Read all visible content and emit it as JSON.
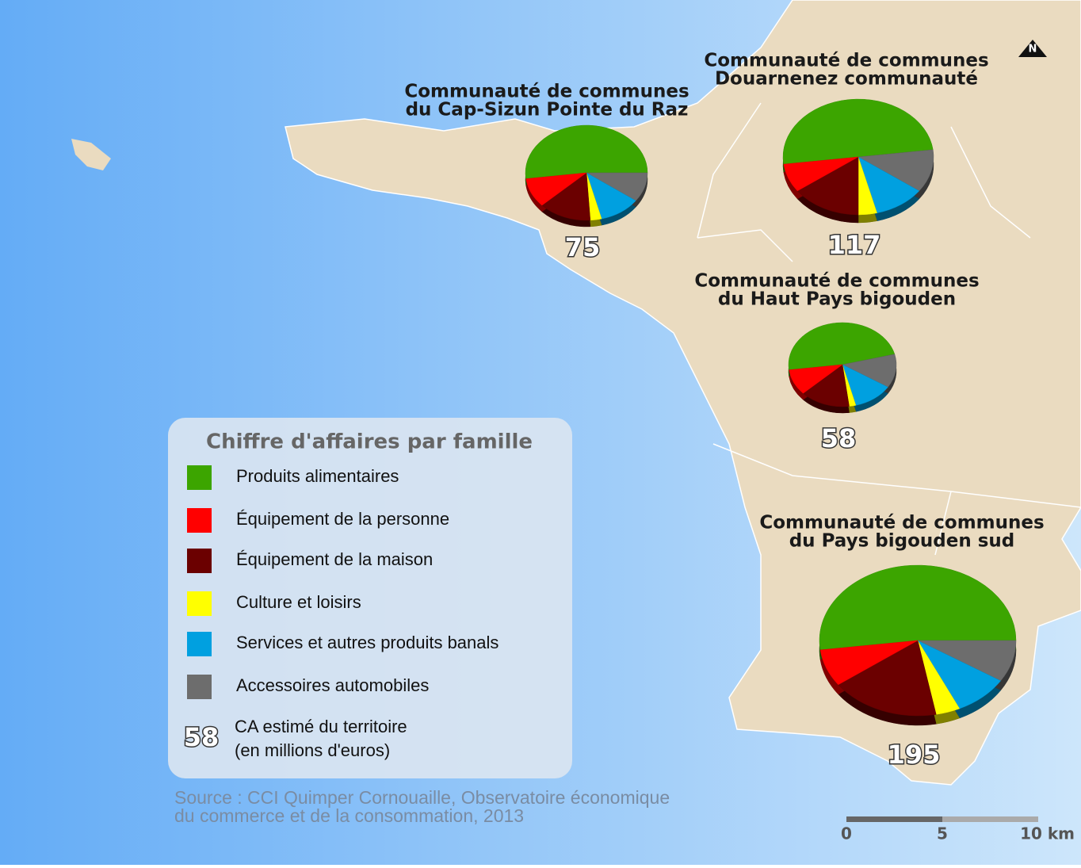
{
  "legend": {
    "title": "Chiffre d'affaires par famille",
    "items": [
      {
        "label": "Produits alimentaires",
        "color": "#3ca500"
      },
      {
        "label": "Équipement de la personne",
        "color": "#ff0000"
      },
      {
        "label": "Équipement de la maison",
        "color": "#6b0000"
      },
      {
        "label": "Culture et loisirs",
        "color": "#ffff00"
      },
      {
        "label": "Services et autres produits banals",
        "color": "#00a0e0"
      },
      {
        "label": "Accessoires automobiles",
        "color": "#6d6d6d"
      }
    ],
    "total_example": "58",
    "total_lines": [
      "CA estimé du territoire",
      "(en millions d'euros)"
    ]
  },
  "pies": [
    {
      "title": [
        "Communauté de communes",
        "du Cap-Sizun Pointe du Raz"
      ],
      "total": "75",
      "values": [
        52,
        10,
        11,
        3,
        14,
        10
      ]
    },
    {
      "title": [
        "Communauté de communes",
        "Douarnenez communauté"
      ],
      "total": "117",
      "values": [
        50,
        12,
        11,
        4,
        15,
        8
      ]
    },
    {
      "title": [
        "Communauté de communes",
        "du Haut Pays bigouden"
      ],
      "total": "58",
      "values": [
        48,
        13,
        12,
        2,
        15,
        10
      ]
    },
    {
      "title": [
        "Communauté de communes",
        "du Pays bigouden sud"
      ],
      "total": "195",
      "values": [
        52,
        9,
        9,
        4,
        18,
        8
      ]
    }
  ],
  "source": [
    "Source : CCI Quimper Cornouaille, Observatoire économique",
    "du commerce et de la consommation, 2013"
  ],
  "scale": [
    "0",
    "5",
    "10 km"
  ],
  "north": "N"
}
